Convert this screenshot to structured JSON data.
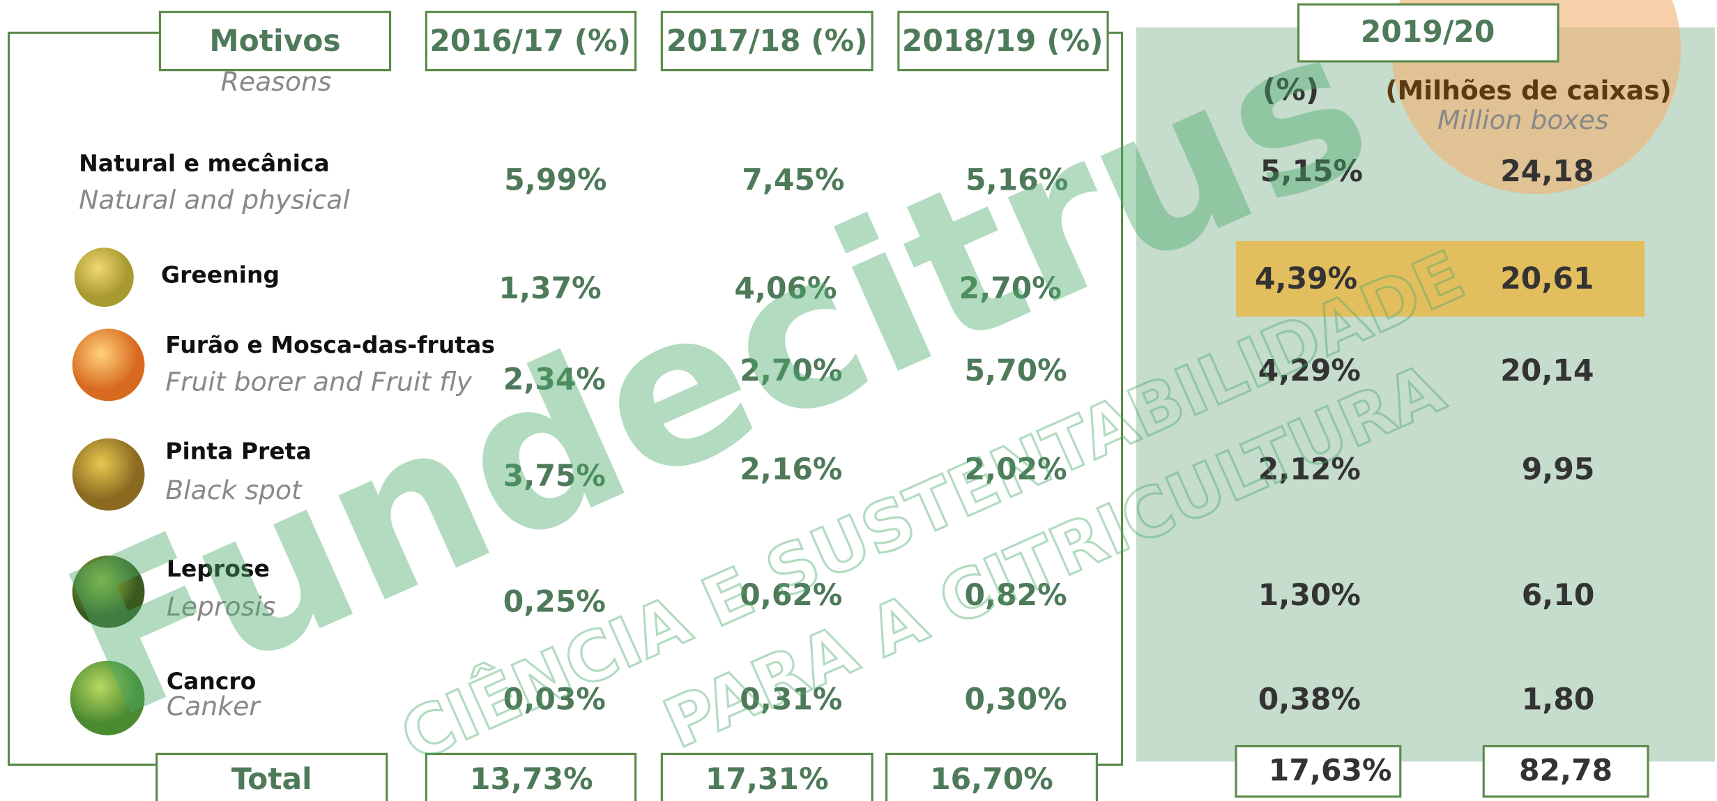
{
  "header": {
    "reasons_label": "Motivos",
    "reasons_label_en": "Reasons",
    "columns": [
      "2016/17 (%)",
      "2017/18 (%)",
      "2018/19 (%)"
    ],
    "season": "2019/20",
    "percent_label": "(%)",
    "boxes_label": "(Milhões de caixas)",
    "boxes_label_en": "Million boxes"
  },
  "rows": [
    {
      "name": "Natural e mecânica",
      "name_en": "Natural and physical",
      "values": [
        "5,99%",
        "7,45%",
        "5,16%",
        "5,15%",
        "24,18"
      ]
    },
    {
      "name": "Greening",
      "values": [
        "1,37%",
        "4,06%",
        "2,70%",
        "4,39%",
        "20,61"
      ]
    },
    {
      "name": "Furão e Mosca-das-frutas",
      "name_en": "Fruit borer and Fruit fly",
      "values": [
        "2,34%",
        "2,70%",
        "5,70%",
        "4,29%",
        "20,14"
      ]
    },
    {
      "name": "Pinta Preta",
      "name_en": "Black spot",
      "values": [
        "3,75%",
        "2,16%",
        "2,02%",
        "2,12%",
        "9,95"
      ]
    },
    {
      "name": "Leprose",
      "name_en": "Leprosis",
      "values": [
        "0,25%",
        "0,62%",
        "0,82%",
        "1,30%",
        "6,10"
      ]
    },
    {
      "name": "Cancro",
      "name_en": "Canker",
      "values": [
        "0,03%",
        "0,31%",
        "0,30%",
        "0,38%",
        "1,80"
      ]
    }
  ],
  "total": {
    "label": "Total",
    "values": [
      "13,73%",
      "17,31%",
      "16,70%",
      "17,63%",
      "82,78"
    ]
  },
  "watermark": {
    "brand": "Fundecitrus",
    "line1": "CIÊNCIA E SUSTENTABILIDADE",
    "line2": "PARA A CITRICULTURA"
  }
}
